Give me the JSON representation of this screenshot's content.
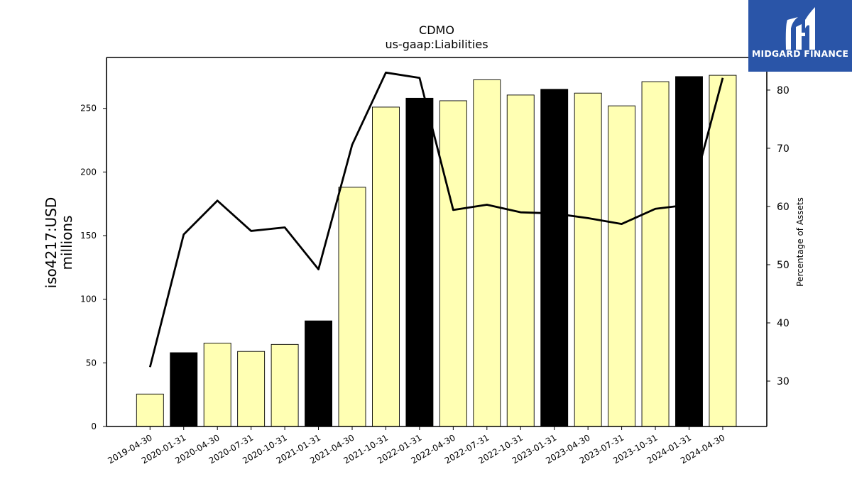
{
  "chart_data": {
    "type": "bar",
    "title": "CDMO",
    "subtitle": "us-gaap:Liabilities",
    "ylabel": "iso4217:USD\nmillions",
    "ylabel_right": "Percentage of Assets",
    "categories": [
      "2019-04-30",
      "2020-01-31",
      "2020-04-30",
      "2020-07-31",
      "2020-10-31",
      "2021-01-31",
      "2021-04-30",
      "2021-10-31",
      "2022-01-31",
      "2022-04-30",
      "2022-07-31",
      "2022-10-31",
      "2023-01-31",
      "2023-04-30",
      "2023-07-31",
      "2023-10-31",
      "2024-01-31",
      "2024-04-30"
    ],
    "series": [
      {
        "type": "bar",
        "values": [
          25.5,
          58,
          65.5,
          59,
          64.5,
          83,
          188,
          251,
          258,
          256,
          272.5,
          260.5,
          265,
          262,
          252,
          271,
          275,
          276
        ]
      },
      {
        "type": "line",
        "axis": "right",
        "values": [
          32.4,
          55.2,
          61.0,
          55.8,
          56.4,
          49.2,
          70.6,
          83.0,
          82.1,
          59.4,
          60.3,
          59.0,
          58.8,
          58.0,
          57.0,
          59.6,
          60.3,
          82.1
        ]
      }
    ],
    "bar_colors": [
      "#ffffb3",
      "#000000",
      "#ffffb3",
      "#ffffb3",
      "#ffffb3",
      "#000000",
      "#ffffb3",
      "#ffffb3",
      "#000000",
      "#ffffb3",
      "#ffffb3",
      "#ffffb3",
      "#000000",
      "#ffffb3",
      "#ffffb3",
      "#ffffb3",
      "#000000",
      "#ffffb3"
    ],
    "ylim": [
      0,
      290
    ],
    "ylim_right": [
      22.2,
      85.6
    ],
    "yticks": [
      0,
      50,
      100,
      150,
      200,
      250
    ],
    "yticks_right": [
      30,
      40,
      50,
      60,
      70,
      80
    ],
    "grid": false,
    "line_color": "#000000"
  },
  "logo": {
    "text": "MIDGARD FINANCE",
    "background": "#2a55a8"
  }
}
